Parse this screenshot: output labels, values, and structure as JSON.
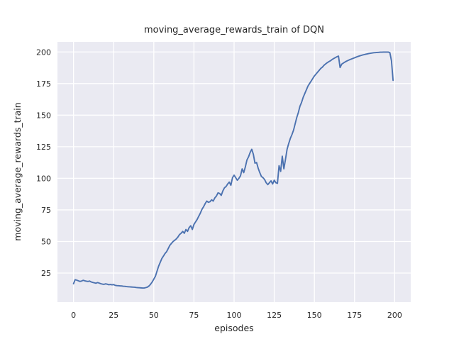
{
  "chart_data": {
    "type": "line",
    "title": "moving_average_rewards_train of DQN",
    "xlabel": "episodes",
    "ylabel": "moving_average_rewards_train",
    "x_ticks": [
      0,
      25,
      50,
      75,
      100,
      125,
      150,
      175,
      200
    ],
    "y_ticks": [
      25,
      50,
      75,
      100,
      125,
      150,
      175,
      200
    ],
    "xlim": [
      -10,
      210
    ],
    "ylim": [
      2,
      208
    ],
    "grid": true,
    "legend": null,
    "style": "seaborn-darkgrid",
    "colors": {
      "figure_bg": "#ffffff",
      "plot_bg": "#eaeaf2",
      "grid": "#ffffff",
      "line": "#4c72b0",
      "text": "#262626"
    },
    "series": [
      {
        "name": "moving_average_rewards_train",
        "color": "#4c72b0",
        "x_start": 0,
        "x_step": 1,
        "values": [
          16.6,
          19.8,
          19.4,
          18.9,
          18.4,
          18.7,
          19.3,
          18.9,
          18.6,
          18.4,
          18.7,
          18.0,
          17.6,
          17.3,
          17.0,
          17.5,
          17.1,
          16.6,
          16.3,
          16.1,
          16.5,
          16.2,
          15.8,
          16.0,
          15.7,
          15.9,
          15.3,
          15.1,
          15.0,
          14.9,
          14.8,
          14.6,
          14.5,
          14.3,
          14.2,
          14.1,
          14.0,
          13.9,
          13.8,
          13.6,
          13.5,
          13.4,
          13.3,
          13.2,
          13.2,
          13.5,
          13.9,
          14.8,
          16.2,
          18.0,
          20.2,
          22.5,
          26.5,
          30.5,
          33.5,
          36.5,
          38.5,
          40.5,
          42.0,
          44.5,
          47.0,
          48.5,
          50.0,
          51.0,
          52.0,
          53.5,
          55.5,
          56.5,
          58.0,
          56.5,
          59.5,
          58.0,
          61.0,
          62.5,
          59.5,
          63.5,
          65.5,
          67.5,
          70.0,
          72.5,
          75.5,
          77.5,
          80.0,
          82.0,
          81.0,
          81.5,
          83.0,
          82.0,
          84.5,
          86.0,
          88.5,
          88.0,
          86.5,
          90.0,
          92.5,
          93.5,
          95.5,
          97.0,
          94.5,
          100.5,
          102.5,
          100.5,
          98.5,
          100.0,
          102.0,
          107.5,
          104.5,
          109.0,
          114.5,
          117.0,
          120.5,
          123.0,
          119.0,
          112.0,
          112.5,
          108.0,
          104.5,
          101.5,
          100.5,
          99.0,
          96.5,
          95.0,
          96.5,
          98.0,
          95.5,
          98.5,
          96.5,
          96.0,
          110.0,
          105.5,
          117.5,
          107.5,
          115.0,
          123.0,
          127.5,
          131.5,
          134.5,
          138.0,
          143.0,
          148.0,
          152.0,
          157.0,
          160.0,
          164.0,
          167.0,
          170.0,
          173.0,
          175.0,
          177.0,
          179.0,
          181.0,
          182.5,
          184.0,
          185.5,
          187.0,
          188.0,
          189.5,
          190.5,
          191.5,
          192.3,
          193.0,
          194.0,
          194.8,
          195.5,
          196.2,
          196.7,
          187.7,
          190.3,
          191.2,
          192.0,
          192.7,
          193.3,
          193.9,
          194.4,
          194.9,
          195.4,
          195.9,
          196.4,
          196.8,
          197.2,
          197.6,
          197.9,
          198.2,
          198.5,
          198.8,
          199.0,
          199.2,
          199.4,
          199.5,
          199.6,
          199.7,
          199.8,
          199.8,
          199.9,
          199.9,
          199.9,
          199.9,
          199.5,
          193.0,
          177.5
        ]
      }
    ]
  }
}
